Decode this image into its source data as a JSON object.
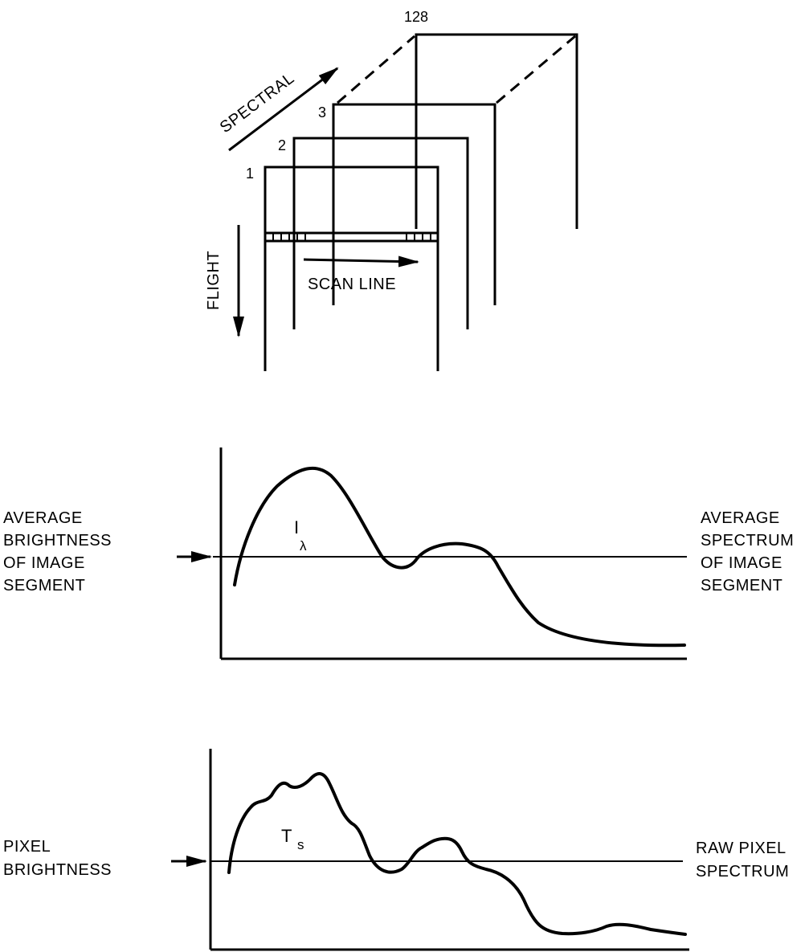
{
  "cube": {
    "band_labels": [
      "1",
      "2",
      "3",
      "128"
    ],
    "spectral_label": "SPECTRAL",
    "flight_label": "FLIGHT",
    "scan_line_label": "SCAN LINE"
  },
  "average_panel": {
    "left_label": [
      "AVERAGE",
      "BRIGHTNESS",
      "OF IMAGE",
      "SEGMENT"
    ],
    "right_label": [
      "AVERAGE",
      "SPECTRUM",
      "OF IMAGE",
      "SEGMENT"
    ],
    "symbol": "I",
    "symbol_sub": "λ"
  },
  "pixel_panel": {
    "left_label": [
      "PIXEL",
      "BRIGHTNESS"
    ],
    "right_label": [
      "RAW PIXEL",
      "SPECTRUM"
    ],
    "symbol": "T",
    "symbol_sub": "s"
  }
}
